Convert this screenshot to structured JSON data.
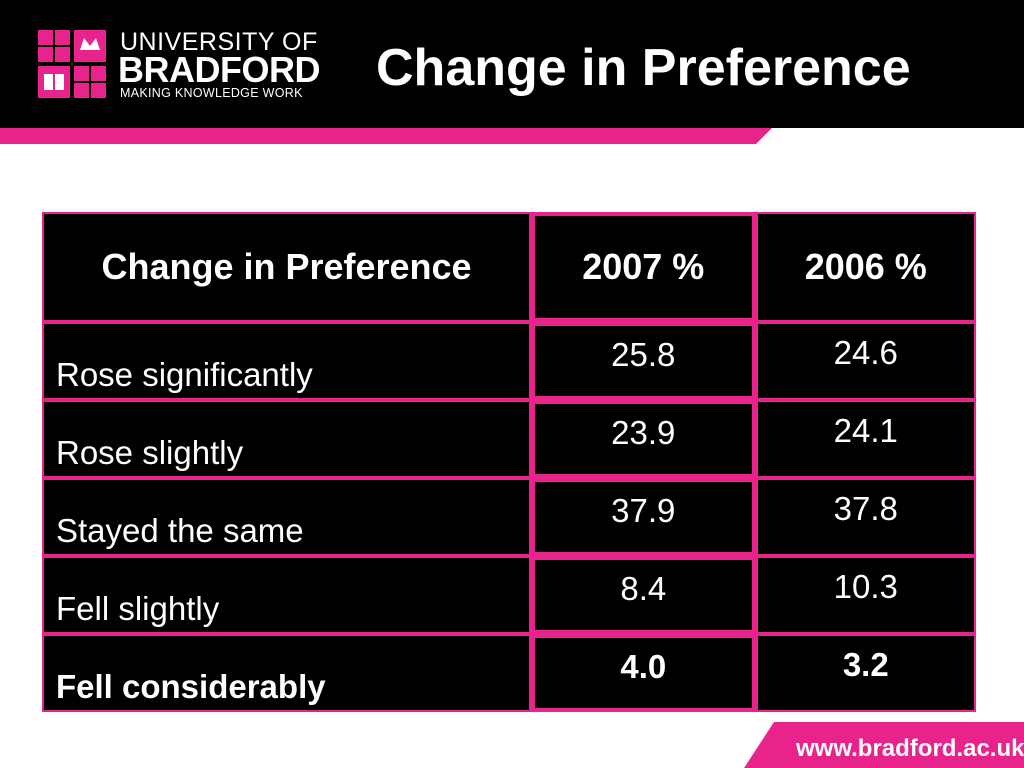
{
  "colors": {
    "accent": "#e8248c",
    "header_bg": "#000000",
    "table_bg": "#000000",
    "text": "#ffffff"
  },
  "logo": {
    "line1": "UNIVERSITY OF",
    "line2": "BRADFORD",
    "line3": "MAKING KNOWLEDGE WORK"
  },
  "title": "Change in Preference",
  "table": {
    "headers": [
      "Change in Preference",
      "2007 %",
      "2006 %"
    ],
    "rows": [
      {
        "label": "Rose significantly",
        "v2007": "25.8",
        "v2006": "24.6"
      },
      {
        "label": "Rose slightly",
        "v2007": "23.9",
        "v2006": "24.1"
      },
      {
        "label": "Stayed the same",
        "v2007": "37.9",
        "v2006": "37.8"
      },
      {
        "label": "Fell slightly",
        "v2007": "8.4",
        "v2006": "10.3"
      },
      {
        "label": "Fell considerably",
        "v2007": "4.0",
        "v2006": "3.2"
      }
    ]
  },
  "footer": {
    "url": "www.bradford.ac.uk"
  }
}
